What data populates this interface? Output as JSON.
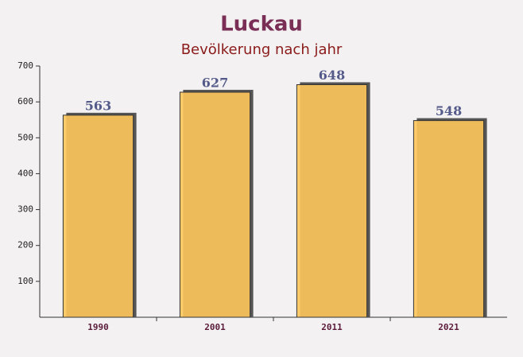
{
  "chart_data": {
    "type": "bar",
    "title": "Luckau",
    "subtitle": "Bevölkerung nach jahr",
    "categories": [
      "1990",
      "2001",
      "2011",
      "2021"
    ],
    "values": [
      563,
      627,
      648,
      548
    ],
    "color": "#ffc65c",
    "ylim": [
      0,
      700
    ],
    "yticks": [
      100,
      200,
      300,
      400,
      500,
      600,
      700
    ],
    "grid": false
  }
}
